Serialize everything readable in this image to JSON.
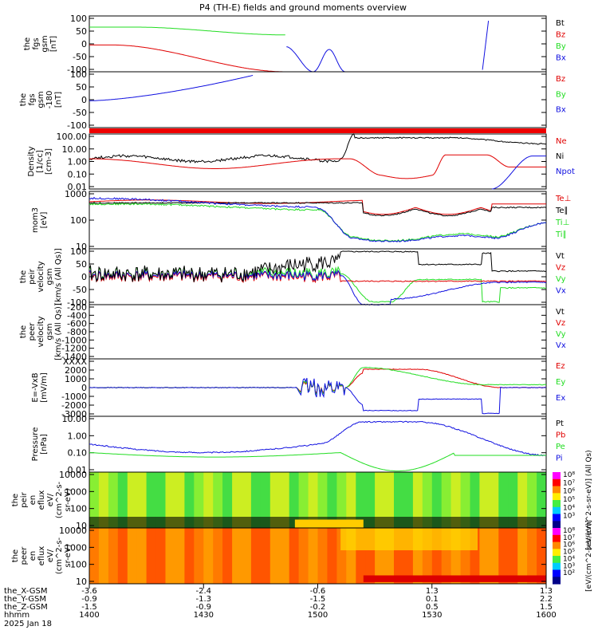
{
  "title": "P4 (TH-E) fields and ground moments overview",
  "date_label": "2025 Jan 18",
  "colors": {
    "black": "#000000",
    "red": "#e00000",
    "green": "#22dd22",
    "blue": "#1010e0"
  },
  "chart_data": [
    {
      "type": "line",
      "id": "fgs_gsm",
      "ylabel": [
        "the",
        "fgs",
        "gsm",
        "[nT]"
      ],
      "yticks": [
        "100",
        "50",
        "0",
        "-50",
        "-100"
      ],
      "ylim": [
        -100,
        100
      ],
      "legend": [
        {
          "name": "Bt",
          "color": "black"
        },
        {
          "name": "Bz",
          "color": "red"
        },
        {
          "name": "By",
          "color": "green"
        },
        {
          "name": "Bx",
          "color": "blue"
        }
      ]
    },
    {
      "type": "line",
      "id": "fgs_gsm_300",
      "ylabel": [
        "the",
        "fgs",
        "gsm",
        "-180",
        "[nT]"
      ],
      "yticks": [
        "100",
        "50",
        "0",
        "-50",
        "-100"
      ],
      "ylim": [
        -120,
        100
      ],
      "legend": [
        {
          "name": "Bz",
          "color": "red"
        },
        {
          "name": "By",
          "color": "green"
        },
        {
          "name": "Bx",
          "color": "blue"
        }
      ]
    },
    {
      "type": "line",
      "id": "density",
      "ylabel": [
        "Density",
        "[1/cc]",
        "[cm-3]"
      ],
      "log": true,
      "yticks": [
        "100.00",
        "10.00",
        "1.00",
        "0.10",
        "0.01"
      ],
      "legend": [
        {
          "name": "Ne",
          "color": "red"
        },
        {
          "name": "Ni",
          "color": "black"
        },
        {
          "name": "Npot",
          "color": "blue"
        }
      ]
    },
    {
      "type": "line",
      "id": "temp",
      "ylabel": [
        "mom3",
        "[eV]"
      ],
      "log": true,
      "yticks": [
        "1000",
        "100",
        "10"
      ],
      "legend": [
        {
          "name": "Te⊥",
          "color": "red"
        },
        {
          "name": "Te∥",
          "color": "black"
        },
        {
          "name": "Ti⊥",
          "color": "green"
        },
        {
          "name": "Ti∥",
          "color": "green"
        }
      ]
    },
    {
      "type": "line",
      "id": "peir_vel",
      "ylabel": [
        "the",
        "peir",
        "velocity",
        "gsm",
        "[km/s (All Qs)]"
      ],
      "yticks": [
        "100",
        "50",
        "0",
        "-50",
        "-100"
      ],
      "ylim": [
        -110,
        120
      ],
      "legend": [
        {
          "name": "Vt",
          "color": "black"
        },
        {
          "name": "Vz",
          "color": "red"
        },
        {
          "name": "Vy",
          "color": "green"
        },
        {
          "name": "Vx",
          "color": "blue"
        }
      ]
    },
    {
      "type": "line",
      "id": "peer_vel",
      "ylabel": [
        "the",
        "peer",
        "velocity",
        "gsm",
        "[km/s (All Qs)]"
      ],
      "yticks": [
        "-200",
        "-400",
        "-600",
        "-800",
        "-1000",
        "-1200",
        "-1400"
      ],
      "ylim": [
        -1400,
        -100
      ],
      "legend": [
        {
          "name": "Vt",
          "color": "black"
        },
        {
          "name": "Vz",
          "color": "red"
        },
        {
          "name": "Vy",
          "color": "green"
        },
        {
          "name": "Vx",
          "color": "blue"
        }
      ]
    },
    {
      "type": "line",
      "id": "efield",
      "ylabel": [
        "E=-VxB",
        "[mV/m]"
      ],
      "yticks": [
        "XXXX",
        "2000",
        "1000",
        "0",
        "-1000",
        "-2000",
        "-3000"
      ],
      "ylim": [
        -3000,
        3000
      ],
      "legend": [
        {
          "name": "Ez",
          "color": "red"
        },
        {
          "name": "Ey",
          "color": "green"
        },
        {
          "name": "Ex",
          "color": "blue"
        }
      ]
    },
    {
      "type": "line",
      "id": "pressure",
      "ylabel": [
        "Pressure",
        "[nPa]"
      ],
      "log": true,
      "yticks": [
        "10.00",
        "1.00",
        "0.10",
        "0.01"
      ],
      "legend": [
        {
          "name": "Pt",
          "color": "black"
        },
        {
          "name": "Pb",
          "color": "red"
        },
        {
          "name": "Pe",
          "color": "green"
        },
        {
          "name": "Pi",
          "color": "blue"
        }
      ],
      "legend_note": "(All Qs)"
    },
    {
      "type": "heatmap",
      "id": "peir_en",
      "ylabel": [
        "the",
        "peir",
        "en",
        "eflux",
        "eV/",
        "(cm^2-s-",
        "sr-eV)"
      ],
      "log": true,
      "yticks": [
        "10000",
        "1000",
        "100",
        "10"
      ],
      "colorbar": {
        "ticks": [
          "10⁸",
          "10⁷",
          "10⁶",
          "10⁵",
          "10⁴",
          "10³"
        ],
        "label": "[eV/(cm^2-s-sr-eV)] (All Qs)"
      }
    },
    {
      "type": "heatmap",
      "id": "peer_en",
      "ylabel": [
        "the",
        "peer",
        "en",
        "eflux",
        "eV/",
        "(cm^2-s-",
        "sr-eV)"
      ],
      "log": true,
      "yticks": [
        "10000",
        "1000",
        "100",
        "10"
      ],
      "colorbar": {
        "ticks": [
          "10⁸",
          "10⁷",
          "10⁶",
          "10⁵",
          "10⁴",
          "10³",
          "10²"
        ],
        "label": "[eV/(cm^2-s-sr-eV)]"
      }
    }
  ],
  "xaxis": {
    "row_labels": [
      "the_X-GSM",
      "the_Y-GSM",
      "the_Z-GSM",
      "hhmm"
    ],
    "ticks": [
      {
        "x": "-3.6",
        "y": "-0.9",
        "z": "-1.5",
        "t": "1400"
      },
      {
        "x": "-2.4",
        "y": "-1.3",
        "z": "-0.9",
        "t": "1430"
      },
      {
        "x": "-0.6",
        "y": "-1.5",
        "z": "-0.2",
        "t": "1500"
      },
      {
        "x": "1.3",
        "y": "0.1",
        "z": "0.5",
        "t": "1530"
      },
      {
        "x": "1.3",
        "y": "2.2",
        "z": "1.5",
        "t": "1600"
      }
    ]
  }
}
